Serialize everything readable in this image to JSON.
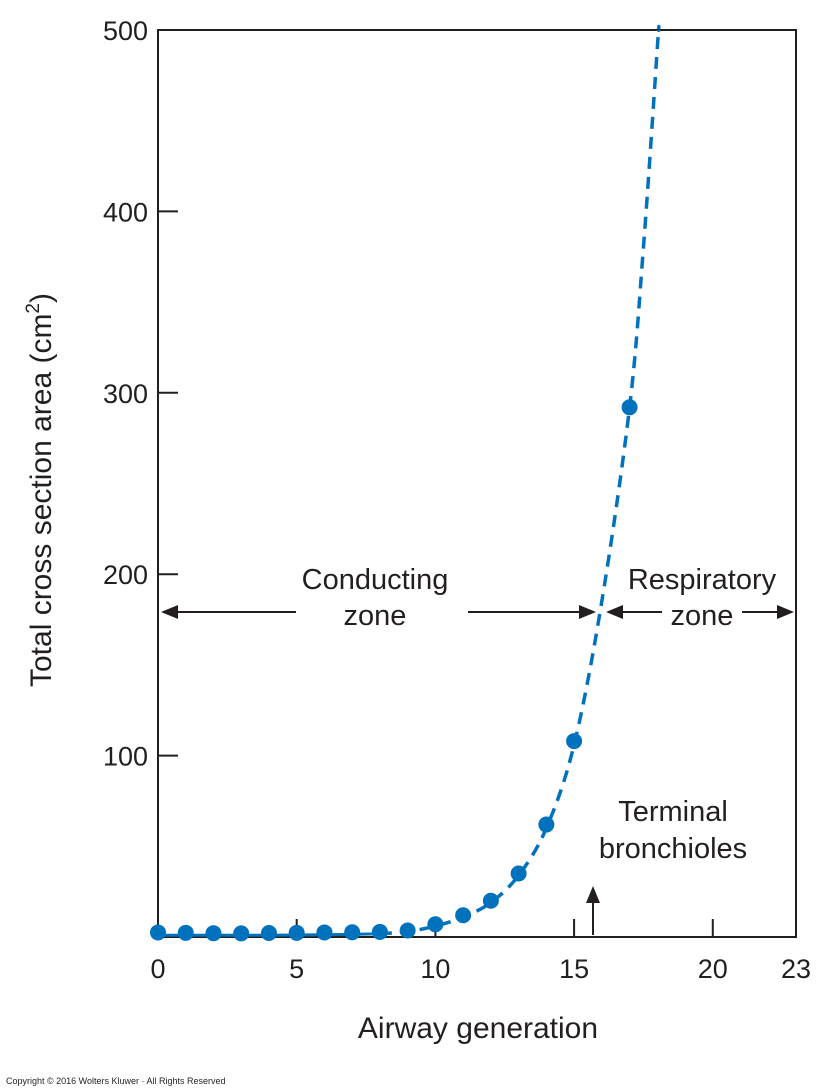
{
  "chart_data": {
    "type": "line",
    "xlabel": "Airway generation",
    "ylabel": "Total cross section area (cm",
    "ylabel_superscript": "2",
    "ylabel_close": ")",
    "xlim": [
      0,
      23
    ],
    "ylim": [
      0,
      500
    ],
    "x_ticks": [
      0,
      5,
      10,
      15,
      20,
      23
    ],
    "x_tick_labels": [
      "0",
      "5",
      "10",
      "15",
      "20",
      "23"
    ],
    "x_minor_ticks": [
      15,
      20
    ],
    "y_ticks": [
      100,
      200,
      300,
      400,
      500
    ],
    "y_tick_labels": [
      "100",
      "200",
      "300",
      "400",
      "500"
    ],
    "grid": false,
    "series": [
      {
        "color": "#0071bc",
        "marker": "circle",
        "line_style": "solid-then-dashed",
        "points": [
          {
            "x": 0,
            "y": 2.5
          },
          {
            "x": 1,
            "y": 2.3
          },
          {
            "x": 2,
            "y": 2.1
          },
          {
            "x": 3,
            "y": 2.0
          },
          {
            "x": 4,
            "y": 2.2
          },
          {
            "x": 5,
            "y": 2.3
          },
          {
            "x": 6,
            "y": 2.5
          },
          {
            "x": 7,
            "y": 2.6
          },
          {
            "x": 8,
            "y": 2.8
          },
          {
            "x": 9,
            "y": 3.6
          },
          {
            "x": 10,
            "y": 7
          },
          {
            "x": 11,
            "y": 12
          },
          {
            "x": 12,
            "y": 20
          },
          {
            "x": 13,
            "y": 35
          },
          {
            "x": 14,
            "y": 62
          },
          {
            "x": 15,
            "y": 108
          },
          {
            "x": 17,
            "y": 292
          }
        ],
        "curve": [
          {
            "x": 0,
            "y": 1
          },
          {
            "x": 2,
            "y": 1
          },
          {
            "x": 4,
            "y": 1
          },
          {
            "x": 6,
            "y": 1.2
          },
          {
            "x": 8,
            "y": 1.8
          },
          {
            "x": 9,
            "y": 3
          },
          {
            "x": 10,
            "y": 6
          },
          {
            "x": 11,
            "y": 11
          },
          {
            "x": 12,
            "y": 19
          },
          {
            "x": 13,
            "y": 34
          },
          {
            "x": 14,
            "y": 60
          },
          {
            "x": 15,
            "y": 106
          },
          {
            "x": 16,
            "y": 185
          },
          {
            "x": 17,
            "y": 292
          },
          {
            "x": 17.5,
            "y": 380
          },
          {
            "x": 18,
            "y": 490
          },
          {
            "x": 18.05,
            "y": 500
          }
        ]
      }
    ],
    "annotations": {
      "conducting_line1": "Conducting",
      "conducting_line2": "zone",
      "respiratory_line1": "Respiratory",
      "respiratory_line2": "zone",
      "terminal_line1": "Terminal",
      "terminal_line2": "bronchioles"
    }
  },
  "footer": {
    "copyright": "Copyright © 2016 Wolters Kluwer · All Rights Reserved"
  }
}
